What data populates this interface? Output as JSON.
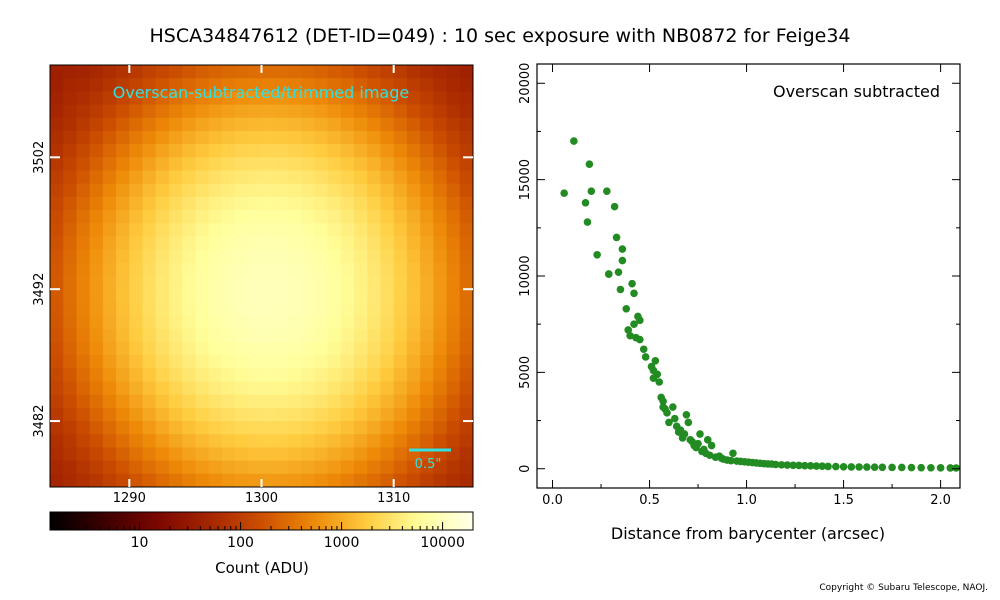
{
  "title": "HSCA34847612 (DET-ID=049) :  10 sec exposure with NB0872 for Feige34",
  "copyright": "Copyright © Subaru Telescope, NAOJ.",
  "chart_data": [
    {
      "type": "heatmap",
      "annotation": "Overscan-subtracted/trimmed image",
      "scale_bar_label": "0.5\"",
      "x_ticks": [
        "1290",
        "1300",
        "1310"
      ],
      "x_tick_values": [
        1290,
        1300,
        1310
      ],
      "y_ticks": [
        "3502",
        "3492",
        "3482"
      ],
      "y_tick_values": [
        3502,
        3492,
        3482
      ],
      "xlim": [
        1284,
        1316
      ],
      "ylim": [
        3477,
        3509
      ],
      "peak_center": [
        1300.5,
        3491.8
      ],
      "colorbar": {
        "label": "Count (ADU)",
        "scale": "log",
        "ticks": [
          "10",
          "100",
          "1000",
          "10000"
        ],
        "tick_values": [
          10,
          100,
          1000,
          10000
        ],
        "range": [
          1.3,
          20000
        ]
      },
      "colormap": [
        "#000000",
        "#3a0000",
        "#7a0600",
        "#a52500",
        "#cc4f00",
        "#ee8a08",
        "#ffcc40",
        "#ffff9c",
        "#ffffe8"
      ]
    },
    {
      "type": "scatter",
      "annotation": "Overscan subtracted",
      "xlabel": "Distance from barycenter (arcsec)",
      "ylabel": "",
      "x_ticks": [
        "0.0",
        "0.5",
        "1.0",
        "1.5",
        "2.0"
      ],
      "x_tick_values": [
        0,
        0.5,
        1.0,
        1.5,
        2.0
      ],
      "y_ticks": [
        "0",
        "5000",
        "10000",
        "15000",
        "20000"
      ],
      "y_tick_values": [
        0,
        5000,
        10000,
        15000,
        20000
      ],
      "xlim": [
        -0.08,
        2.1
      ],
      "ylim": [
        -1000,
        21000
      ],
      "point_color": "#228b22",
      "series": [
        {
          "x": [
            0.06,
            0.11,
            0.17,
            0.18,
            0.19,
            0.2,
            0.23,
            0.28,
            0.29,
            0.29,
            0.32,
            0.33,
            0.34,
            0.35,
            0.36,
            0.36,
            0.38,
            0.39,
            0.4,
            0.41,
            0.42,
            0.42,
            0.43,
            0.44,
            0.45,
            0.45,
            0.47,
            0.48,
            0.51,
            0.52,
            0.52,
            0.53,
            0.54,
            0.55,
            0.56,
            0.57,
            0.57,
            0.58,
            0.59,
            0.6,
            0.62,
            0.63,
            0.64,
            0.65,
            0.66,
            0.67,
            0.68,
            0.69,
            0.7,
            0.71,
            0.72,
            0.73,
            0.74,
            0.75,
            0.76,
            0.77,
            0.78,
            0.79,
            0.8,
            0.81,
            0.82,
            0.84,
            0.86,
            0.87,
            0.88,
            0.9,
            0.92,
            0.93,
            0.95,
            0.97,
            0.99,
            1.01,
            1.03,
            1.05,
            1.07,
            1.09,
            1.11,
            1.13,
            1.15,
            1.18,
            1.21,
            1.24,
            1.27,
            1.3,
            1.33,
            1.36,
            1.39,
            1.42,
            1.46,
            1.5,
            1.54,
            1.58,
            1.62,
            1.66,
            1.7,
            1.75,
            1.8,
            1.85,
            1.9,
            1.95,
            2.0,
            2.05,
            2.08
          ],
          "y": [
            14300,
            17000,
            13800,
            12800,
            15800,
            14400,
            11100,
            14400,
            10100,
            10100,
            13600,
            12000,
            10200,
            9300,
            11400,
            10800,
            8300,
            7200,
            6900,
            9600,
            9100,
            7500,
            6800,
            7900,
            6700,
            7700,
            6200,
            5800,
            5300,
            4700,
            5100,
            5600,
            4900,
            4500,
            3700,
            3500,
            3200,
            3100,
            2900,
            2400,
            3200,
            2600,
            2200,
            1900,
            2000,
            1600,
            1800,
            2800,
            2400,
            1500,
            1400,
            1200,
            1100,
            1300,
            1800,
            900,
            1000,
            800,
            1500,
            700,
            1200,
            600,
            650,
            550,
            500,
            450,
            420,
            800,
            400,
            380,
            360,
            340,
            320,
            300,
            280,
            260,
            250,
            240,
            220,
            200,
            190,
            180,
            170,
            160,
            150,
            140,
            130,
            120,
            110,
            100,
            95,
            90,
            85,
            80,
            75,
            70,
            65,
            60,
            55,
            50,
            45,
            40,
            38
          ]
        }
      ]
    }
  ]
}
